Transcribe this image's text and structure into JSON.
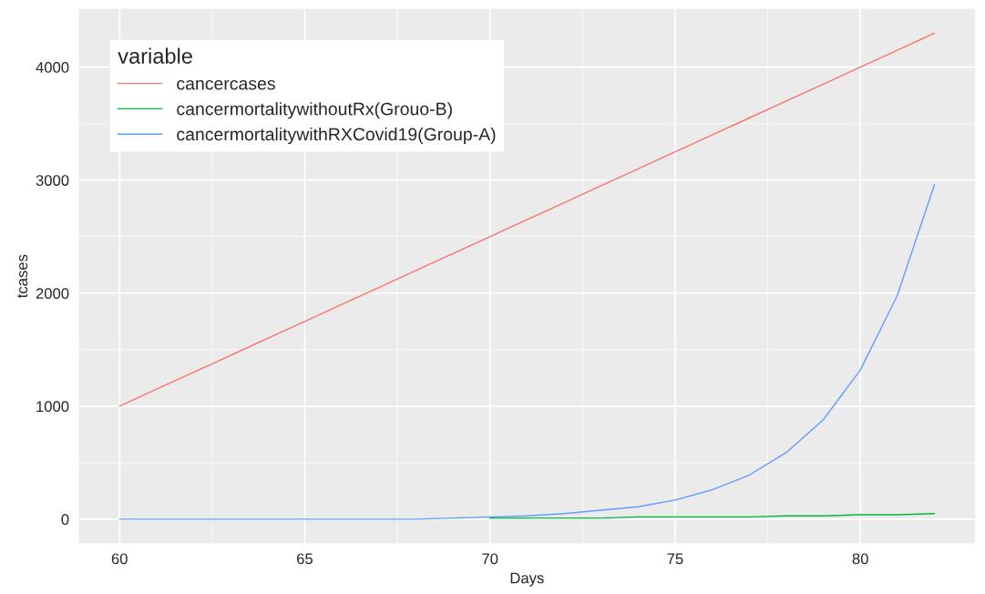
{
  "chart_data": {
    "type": "line",
    "xlabel": "Days",
    "ylabel": "tcases",
    "legend_title": "variable",
    "x": [
      60,
      61,
      62,
      63,
      64,
      65,
      66,
      67,
      68,
      69,
      70,
      71,
      72,
      73,
      74,
      75,
      76,
      77,
      78,
      79,
      80,
      81,
      82
    ],
    "series": [
      {
        "name": "cancercases",
        "color": "#f8766d",
        "values": [
          1000,
          1150,
          1300,
          1450,
          1600,
          1750,
          1900,
          2050,
          2200,
          2350,
          2500,
          2650,
          2800,
          2950,
          3100,
          3250,
          3400,
          3550,
          3700,
          3850,
          4000,
          4150,
          4300
        ]
      },
      {
        "name": "cancermortalitywithoutRx(Grouo-B)",
        "color": "#00ba38",
        "values": [
          null,
          null,
          null,
          null,
          null,
          null,
          null,
          null,
          null,
          null,
          10,
          10,
          10,
          10,
          20,
          20,
          20,
          20,
          30,
          30,
          40,
          40,
          50
        ]
      },
      {
        "name": "cancermortalitywithRXCovid19(Group-A)",
        "color": "#619cff",
        "values": [
          0,
          0,
          0,
          0,
          0,
          0,
          0,
          0,
          0,
          10,
          20,
          30,
          50,
          80,
          110,
          170,
          260,
          390,
          590,
          880,
          1320,
          1980,
          2960
        ]
      }
    ],
    "xlim": [
      58.9,
      83.1
    ],
    "ylim": [
      -215,
      4515
    ],
    "xticks": [
      60,
      65,
      70,
      75,
      80
    ],
    "yticks": [
      0,
      1000,
      2000,
      3000,
      4000
    ],
    "grid": true,
    "legend": "top left",
    "marker": "none",
    "line_style": "solid"
  }
}
